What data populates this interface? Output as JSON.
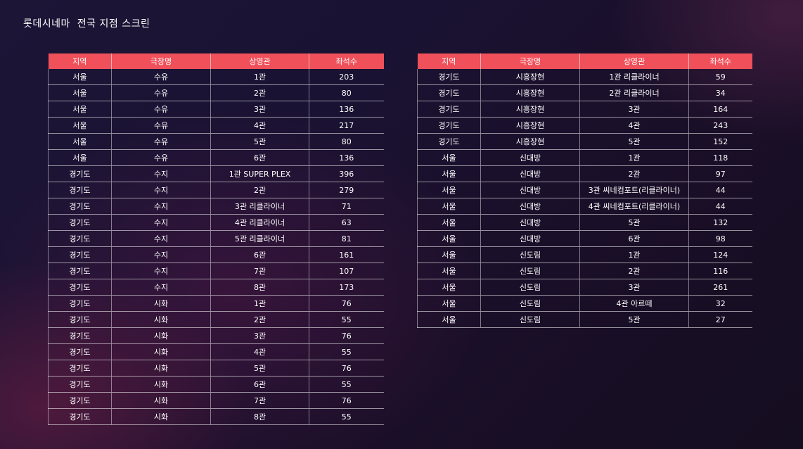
{
  "title": "롯데시네마  전국 지점 스크린",
  "accent_color": "#f0505a",
  "columns": [
    "지역",
    "극장명",
    "상영관",
    "좌석수"
  ],
  "left_table": [
    [
      "서울",
      "수유",
      "1관",
      "203"
    ],
    [
      "서울",
      "수유",
      "2관",
      "80"
    ],
    [
      "서울",
      "수유",
      "3관",
      "136"
    ],
    [
      "서울",
      "수유",
      "4관",
      "217"
    ],
    [
      "서울",
      "수유",
      "5관",
      "80"
    ],
    [
      "서울",
      "수유",
      "6관",
      "136"
    ],
    [
      "경기도",
      "수지",
      "1관 SUPER PLEX",
      "396"
    ],
    [
      "경기도",
      "수지",
      "2관",
      "279"
    ],
    [
      "경기도",
      "수지",
      "3관 리클라이너",
      "71"
    ],
    [
      "경기도",
      "수지",
      "4관 리클라이너",
      "63"
    ],
    [
      "경기도",
      "수지",
      "5관 리클라이너",
      "81"
    ],
    [
      "경기도",
      "수지",
      "6관",
      "161"
    ],
    [
      "경기도",
      "수지",
      "7관",
      "107"
    ],
    [
      "경기도",
      "수지",
      "8관",
      "173"
    ],
    [
      "경기도",
      "시화",
      "1관",
      "76"
    ],
    [
      "경기도",
      "시화",
      "2관",
      "55"
    ],
    [
      "경기도",
      "시화",
      "3관",
      "76"
    ],
    [
      "경기도",
      "시화",
      "4관",
      "55"
    ],
    [
      "경기도",
      "시화",
      "5관",
      "76"
    ],
    [
      "경기도",
      "시화",
      "6관",
      "55"
    ],
    [
      "경기도",
      "시화",
      "7관",
      "76"
    ],
    [
      "경기도",
      "시화",
      "8관",
      "55"
    ]
  ],
  "right_table": [
    [
      "경기도",
      "시흥장현",
      "1관 리클라이너",
      "59"
    ],
    [
      "경기도",
      "시흥장현",
      "2관 리클라이너",
      "34"
    ],
    [
      "경기도",
      "시흥장현",
      "3관",
      "164"
    ],
    [
      "경기도",
      "시흥장현",
      "4관",
      "243"
    ],
    [
      "경기도",
      "시흥장현",
      "5관",
      "152"
    ],
    [
      "서울",
      "신대방",
      "1관",
      "118"
    ],
    [
      "서울",
      "신대방",
      "2관",
      "97"
    ],
    [
      "서울",
      "신대방",
      "3관 씨네컴포트(리클라이너)",
      "44"
    ],
    [
      "서울",
      "신대방",
      "4관 씨네컴포트(리클라이너)",
      "44"
    ],
    [
      "서울",
      "신대방",
      "5관",
      "132"
    ],
    [
      "서울",
      "신대방",
      "6관",
      "98"
    ],
    [
      "서울",
      "신도림",
      "1관",
      "124"
    ],
    [
      "서울",
      "신도림",
      "2관",
      "116"
    ],
    [
      "서울",
      "신도림",
      "3관",
      "261"
    ],
    [
      "서울",
      "신도림",
      "4관 아르떼",
      "32"
    ],
    [
      "서울",
      "신도림",
      "5관",
      "27"
    ]
  ]
}
